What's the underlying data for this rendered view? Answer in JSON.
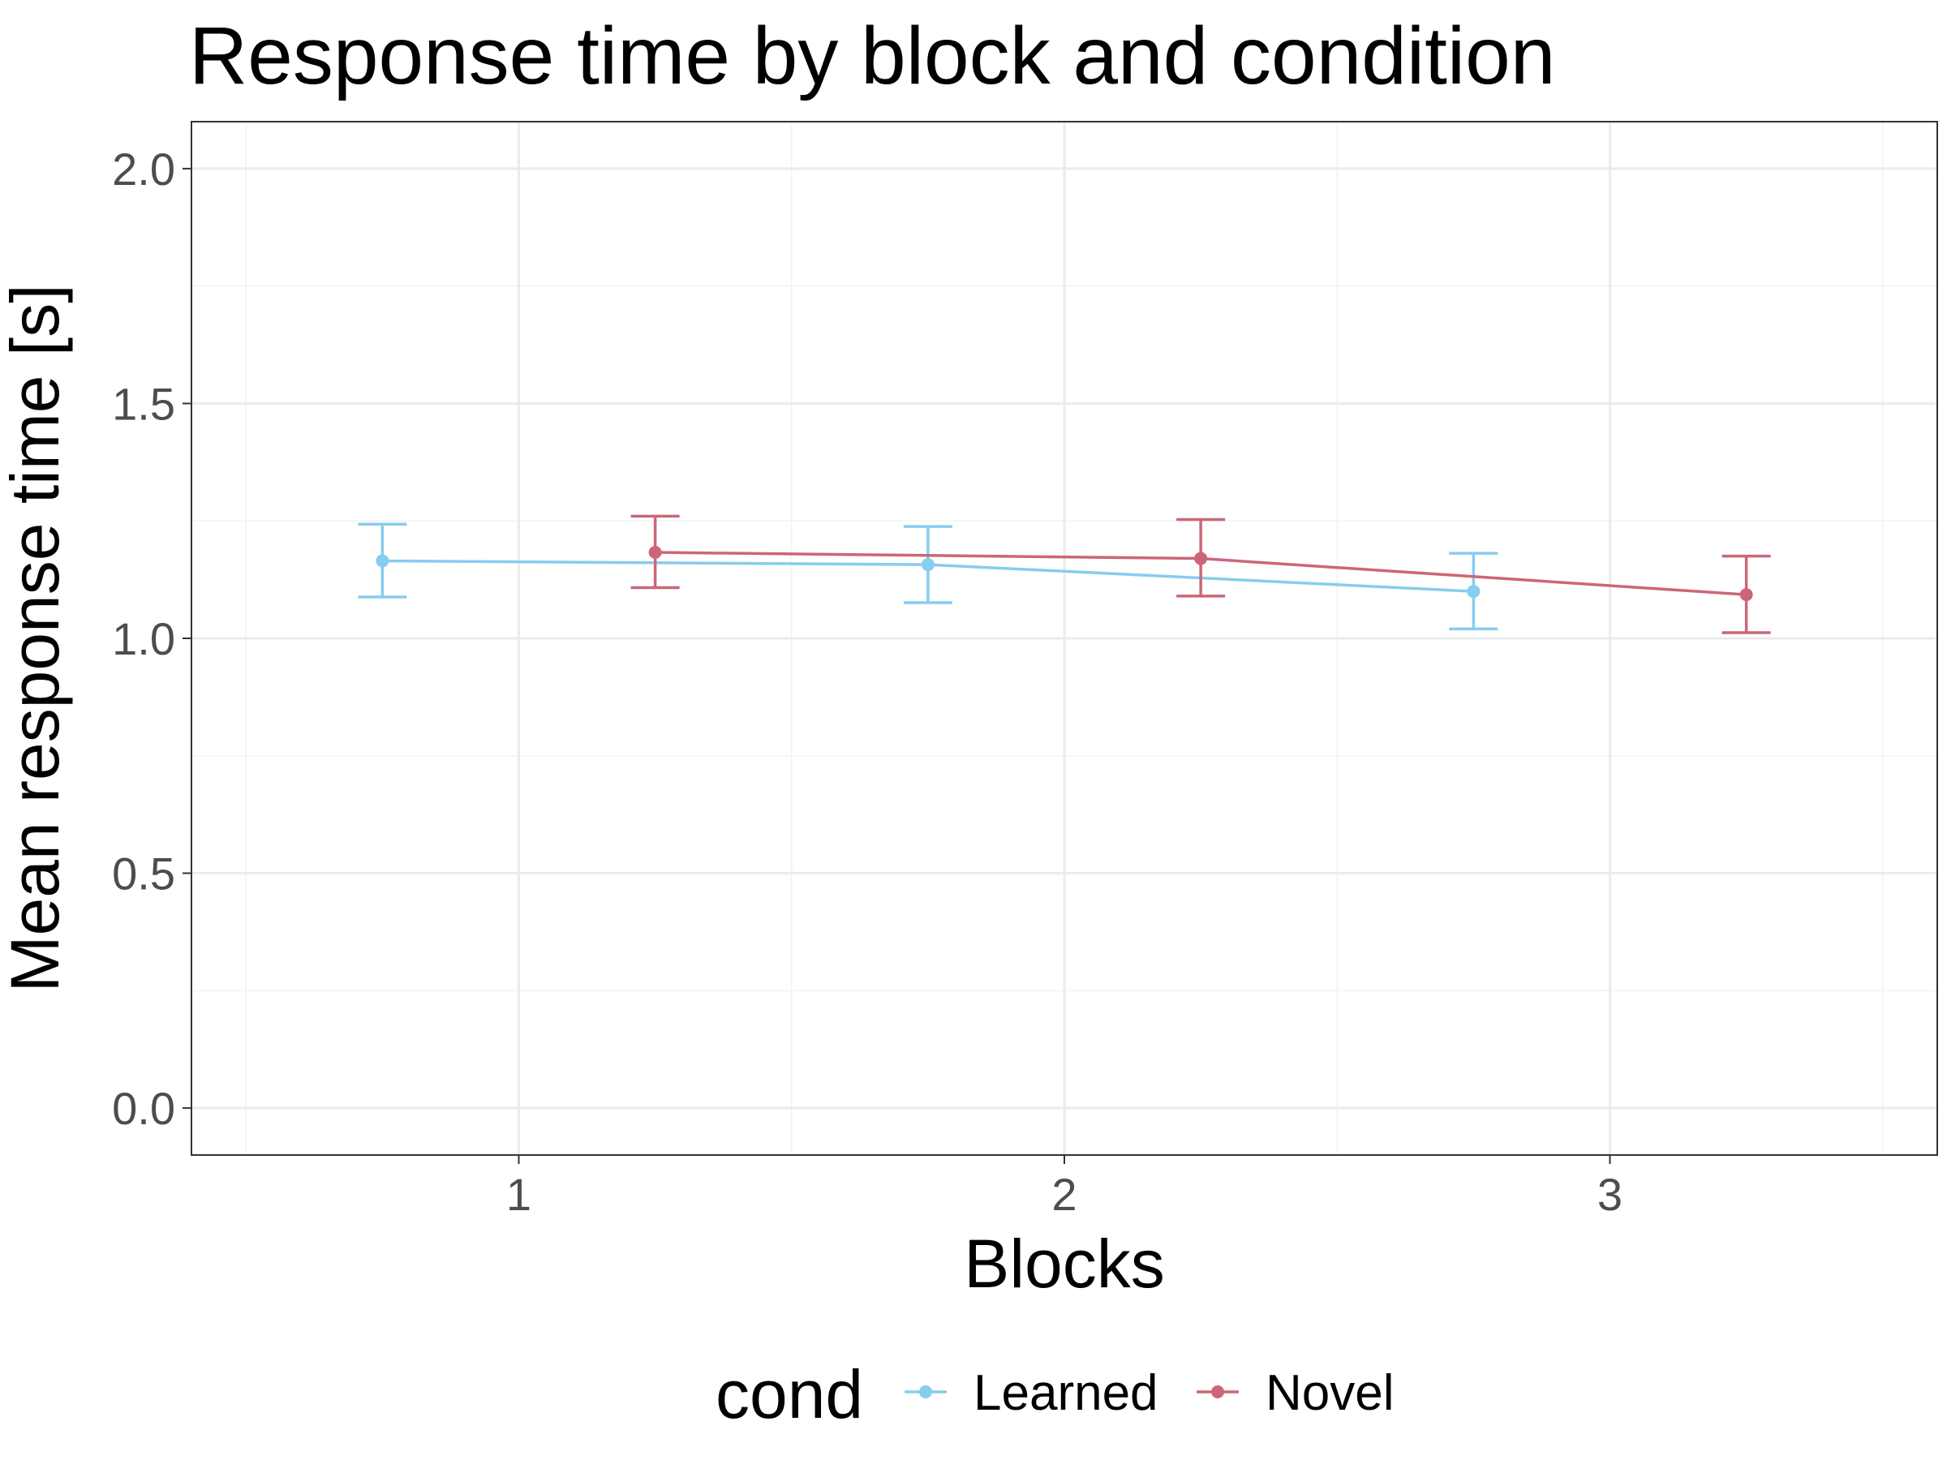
{
  "chart_data": {
    "type": "line",
    "title": "Response time by block and condition",
    "xlabel": "Blocks",
    "ylabel": "Mean response time [s]",
    "x_ticks": [
      "1",
      "2",
      "3"
    ],
    "y_ticks": [
      "0.0",
      "0.5",
      "1.0",
      "1.5",
      "2.0"
    ],
    "xlim": [
      0.4,
      3.6
    ],
    "ylim": [
      -0.1,
      2.1
    ],
    "dodge": 0.25,
    "grid": true,
    "legend": {
      "title": "cond",
      "position": "bottom"
    },
    "x": [
      1,
      2,
      3
    ],
    "series": [
      {
        "name": "Learned",
        "color": "#88ccee",
        "values": [
          1.165,
          1.157,
          1.1
        ],
        "error_low": [
          1.088,
          1.076,
          1.02
        ],
        "error_high": [
          1.243,
          1.238,
          1.181
        ]
      },
      {
        "name": "Novel",
        "color": "#cc6677",
        "values": [
          1.183,
          1.17,
          1.093
        ],
        "error_low": [
          1.108,
          1.09,
          1.012
        ],
        "error_high": [
          1.26,
          1.253,
          1.175
        ]
      }
    ]
  }
}
